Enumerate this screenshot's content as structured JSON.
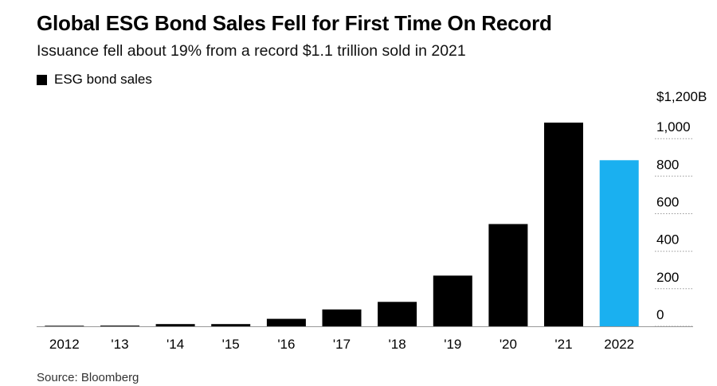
{
  "title": "Global ESG Bond Sales Fell for First Time On Record",
  "subtitle": "Issuance fell about 19% from a record $1.1 trillion sold in 2021",
  "legend_label": "ESG bond sales",
  "source": "Source: Bloomberg",
  "colors": {
    "bar": "#000000",
    "highlight": "#1ab0f0",
    "grid": "#999999"
  },
  "chart_data": {
    "type": "bar",
    "categories": [
      "2012",
      "'13",
      "'14",
      "'15",
      "'16",
      "'17",
      "'18",
      "'19",
      "'20",
      "'21",
      "2022"
    ],
    "series": [
      {
        "name": "ESG bond sales",
        "values": [
          3,
          4,
          12,
          12,
          40,
          90,
          130,
          270,
          545,
          1085,
          885
        ]
      }
    ],
    "highlight_index": 10,
    "ylim": [
      0,
      1200
    ],
    "yticks": [
      0,
      200,
      400,
      600,
      800,
      1000,
      1200
    ],
    "ytick_labels": [
      "0",
      "200",
      "400",
      "600",
      "800",
      "1,000",
      "$1,200B"
    ],
    "y_axis_position": "right",
    "grid": false,
    "legend_position": "top-left"
  }
}
